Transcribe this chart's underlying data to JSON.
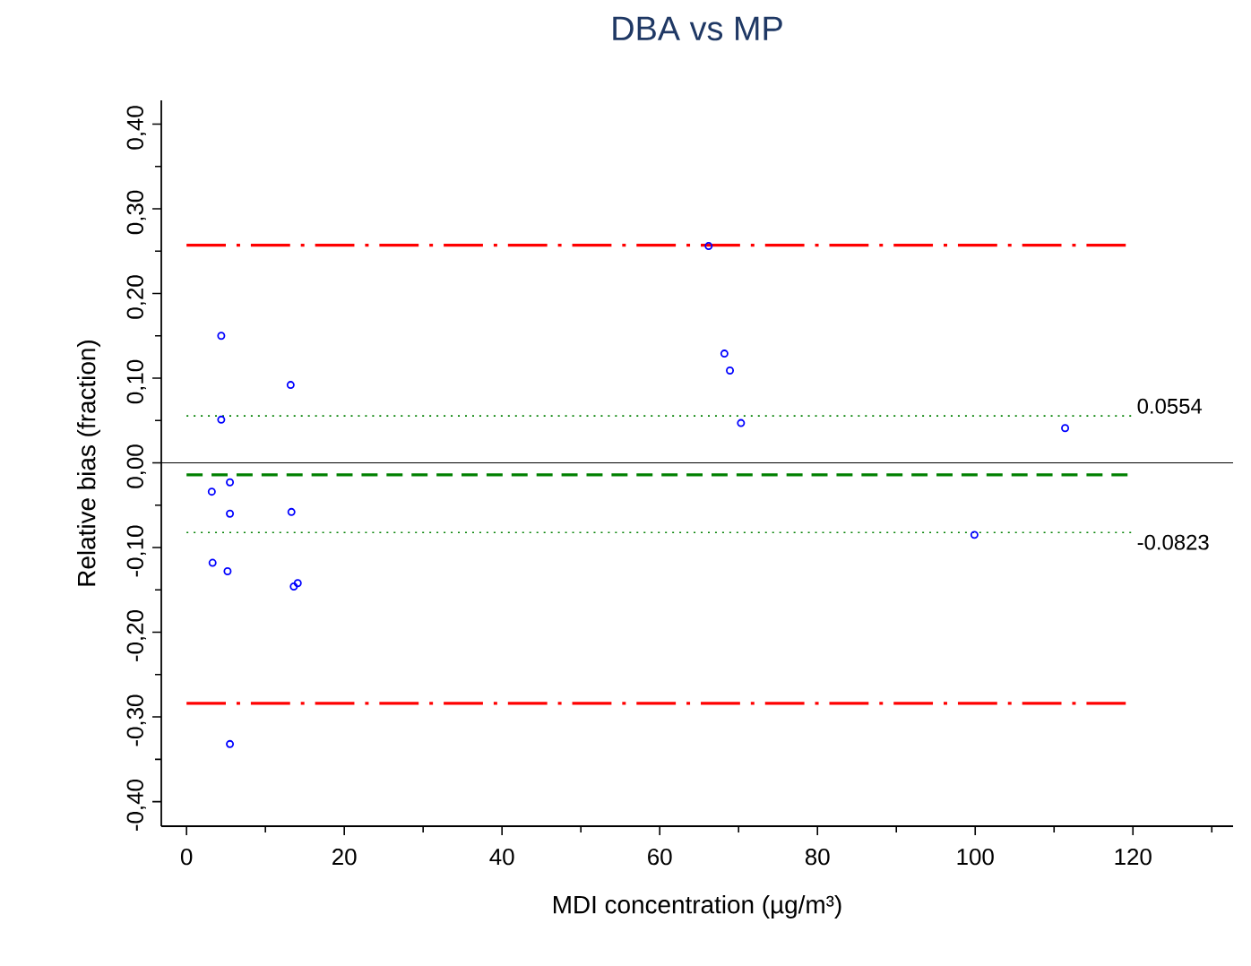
{
  "chart_data": {
    "type": "scatter",
    "title": "DBA vs MP",
    "xlabel": "MDI concentration (µg/m³)",
    "ylabel": "Relative bias (fraction)",
    "x": [
      4.4,
      13.2,
      4.4,
      66.2,
      68.2,
      68.9,
      70.3,
      3.2,
      5.5,
      5.5,
      13.3,
      3.3,
      5.2,
      13.6,
      14.1,
      5.5,
      111.4,
      99.9
    ],
    "series": [
      {
        "color": "#0000ff",
        "values": [
          0.15,
          0.092,
          0.051,
          0.256,
          0.129,
          0.109,
          0.047,
          -0.034,
          -0.023,
          -0.06,
          -0.058,
          -0.118,
          -0.128,
          -0.146,
          -0.142,
          -0.332,
          0.041,
          -0.085
        ]
      }
    ],
    "marker": "circle",
    "xlim": [
      -3.2,
      132.7
    ],
    "ylim": [
      -0.429,
      0.428
    ],
    "xticks": [
      0,
      {
        "value": 10,
        "label": null
      },
      20,
      {
        "value": 30,
        "label": null
      },
      40,
      {
        "value": 50,
        "label": null
      },
      60,
      {
        "value": 70,
        "label": null
      },
      80,
      {
        "value": 90,
        "label": null
      },
      100,
      {
        "value": 110,
        "label": null
      },
      120,
      {
        "value": 130,
        "label": null
      }
    ],
    "yticks": [
      {
        "value": -0.4,
        "label": "-0,40"
      },
      {
        "value": -0.35,
        "label": null
      },
      {
        "value": -0.3,
        "label": "-0,30"
      },
      {
        "value": -0.25,
        "label": null
      },
      {
        "value": -0.2,
        "label": "-0,20"
      },
      {
        "value": -0.15,
        "label": null
      },
      {
        "value": -0.1,
        "label": "-0,10"
      },
      {
        "value": -0.05,
        "label": null
      },
      {
        "value": 0,
        "label": "0,00"
      },
      {
        "value": 0.05,
        "label": null
      },
      {
        "value": 0.1,
        "label": "0,10"
      },
      {
        "value": 0.15,
        "label": null
      },
      {
        "value": 0.2,
        "label": "0,20"
      },
      {
        "value": 0.25,
        "label": null
      },
      {
        "value": 0.3,
        "label": "0,30"
      },
      {
        "value": 0.35,
        "label": null
      },
      {
        "value": 0.4,
        "label": "0,40"
      }
    ],
    "ref_lines": [
      {
        "axis": "y",
        "value": 0,
        "color": "#000000",
        "line_style": "solid"
      },
      {
        "axis": "y",
        "value": 0.257,
        "color": "#ff0000",
        "line_style": "dashdot"
      },
      {
        "axis": "y",
        "value": -0.284,
        "color": "#ff0000",
        "line_style": "dashdot"
      },
      {
        "axis": "y",
        "value": -0.0142,
        "color": "#008000",
        "line_style": "dashed"
      },
      {
        "axis": "y",
        "value": 0.0554,
        "color": "#008000",
        "line_style": "dotted"
      },
      {
        "axis": "y",
        "value": -0.0823,
        "color": "#008000",
        "line_style": "dotted"
      }
    ],
    "annotations": [
      {
        "text": "0.0554",
        "x": 120,
        "y": 0.0554
      },
      {
        "text": "-0.0823",
        "x": 120,
        "y": -0.0823
      }
    ]
  }
}
